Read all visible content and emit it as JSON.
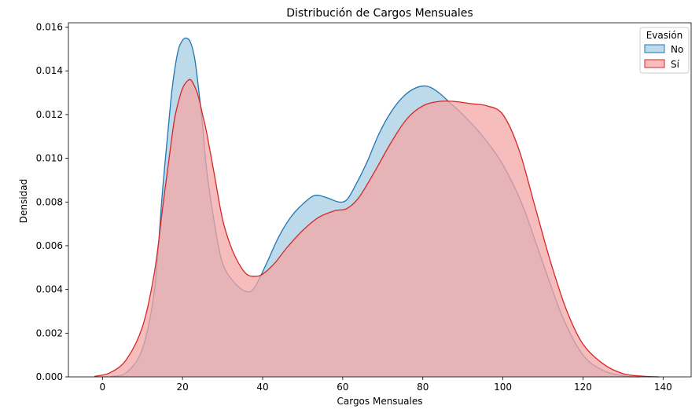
{
  "chart_data": {
    "type": "area",
    "title": "Distribución de Cargos Mensuales",
    "xlabel": "Cargos Mensuales",
    "ylabel": "Densidad",
    "xlim": [
      -8.5,
      147
    ],
    "ylim": [
      0,
      0.0162
    ],
    "xticks": [
      0,
      20,
      40,
      60,
      80,
      100,
      120,
      140
    ],
    "xtick_labels": [
      "0",
      "20",
      "40",
      "60",
      "80",
      "100",
      "120",
      "140"
    ],
    "yticks": [
      0,
      0.002,
      0.004,
      0.006,
      0.008,
      0.01,
      0.012,
      0.014,
      0.016
    ],
    "ytick_labels": [
      "0.000",
      "0.002",
      "0.004",
      "0.006",
      "0.008",
      "0.010",
      "0.012",
      "0.014",
      "0.016"
    ],
    "grid": false,
    "legend": {
      "title": "Evasión",
      "placement": "top-right"
    },
    "series": [
      {
        "name": "No",
        "line_color": "#1f77b4",
        "fill_color": "#a6cee3",
        "x": [
          2,
          6,
          10,
          13,
          15,
          17,
          18,
          19,
          20,
          21,
          22,
          23,
          24,
          25,
          26,
          28,
          30,
          33,
          36,
          38,
          41,
          44,
          47,
          50,
          53,
          56,
          59,
          61,
          63,
          66,
          69,
          72,
          75,
          78,
          81,
          84,
          87,
          90,
          95,
          100,
          105,
          110,
          115,
          120,
          125,
          130,
          134
        ],
        "y": [
          2e-05,
          0.0002,
          0.0013,
          0.004,
          0.0085,
          0.0125,
          0.014,
          0.015,
          0.0154,
          0.0155,
          0.0153,
          0.0146,
          0.0132,
          0.0115,
          0.0095,
          0.007,
          0.0052,
          0.0043,
          0.0039,
          0.0041,
          0.0052,
          0.0064,
          0.0073,
          0.0079,
          0.0083,
          0.0082,
          0.008,
          0.0081,
          0.0087,
          0.0098,
          0.0111,
          0.0121,
          0.0128,
          0.0132,
          0.0133,
          0.013,
          0.0125,
          0.012,
          0.011,
          0.0097,
          0.0078,
          0.0052,
          0.0027,
          0.001,
          0.0003,
          5e-05,
          0.0
        ]
      },
      {
        "name": "Sí",
        "line_color": "#d62728",
        "fill_color": "#f4a6a6",
        "x": [
          -2,
          2,
          6,
          10,
          13,
          15,
          17,
          18,
          19,
          20,
          21,
          22,
          23,
          24,
          25,
          26,
          28,
          30,
          32,
          34,
          36,
          38,
          40,
          43,
          46,
          50,
          54,
          58,
          61,
          64,
          68,
          72,
          76,
          80,
          84,
          88,
          92,
          96,
          100,
          104,
          108,
          112,
          116,
          120,
          125,
          130,
          135,
          139
        ],
        "y": [
          2e-05,
          0.0002,
          0.0008,
          0.0023,
          0.0048,
          0.0077,
          0.0105,
          0.0118,
          0.0126,
          0.0132,
          0.0135,
          0.0136,
          0.0133,
          0.0128,
          0.012,
          0.0112,
          0.0092,
          0.0072,
          0.006,
          0.0052,
          0.0047,
          0.0046,
          0.0047,
          0.0052,
          0.0059,
          0.0067,
          0.0073,
          0.0076,
          0.0077,
          0.0082,
          0.0094,
          0.0107,
          0.0118,
          0.0124,
          0.0126,
          0.0126,
          0.0125,
          0.0124,
          0.012,
          0.0104,
          0.0078,
          0.0052,
          0.003,
          0.0015,
          0.0006,
          0.00015,
          3e-05,
          0.0
        ]
      }
    ]
  }
}
